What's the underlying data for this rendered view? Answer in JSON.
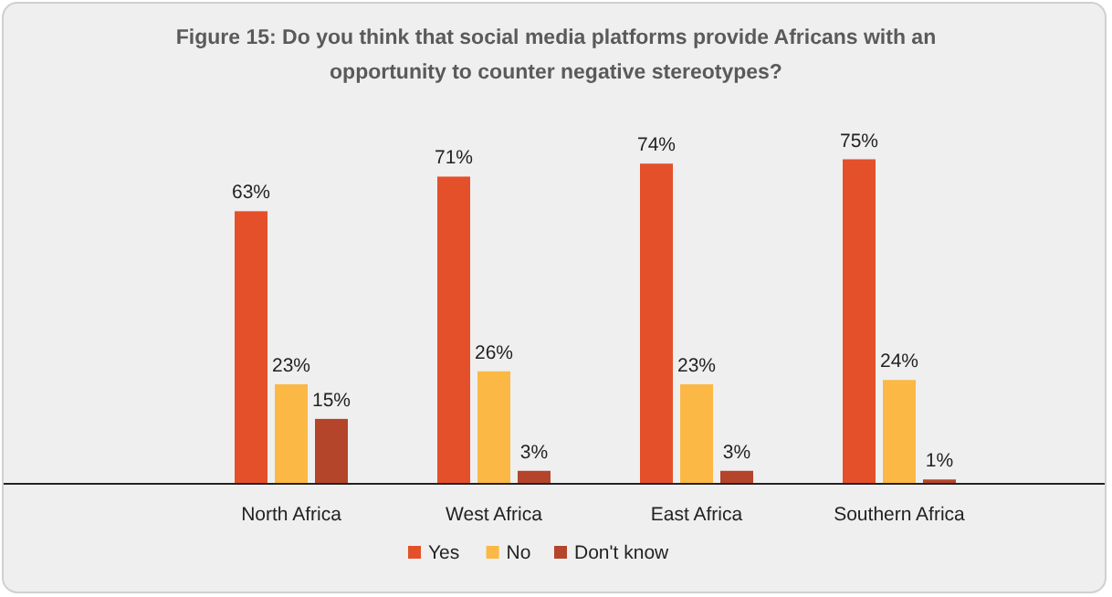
{
  "chart_data": {
    "type": "bar",
    "title": "Figure 15: Do you think that social media platforms provide Africans with an opportunity to counter negative stereotypes?",
    "categories": [
      "North Africa",
      "West Africa",
      "East Africa",
      "Southern Africa"
    ],
    "series": [
      {
        "name": "Yes",
        "color": "#e4502a",
        "values": [
          63,
          71,
          74,
          75
        ],
        "value_labels": [
          "63%",
          "71%",
          "74%",
          "75%"
        ]
      },
      {
        "name": "No",
        "color": "#fbb845",
        "values": [
          23,
          26,
          23,
          24
        ],
        "value_labels": [
          "23%",
          "26%",
          "23%",
          "24%"
        ]
      },
      {
        "name": "Don't know",
        "color": "#b4452a",
        "values": [
          15,
          3,
          3,
          1
        ],
        "value_labels": [
          "15%",
          "3%",
          "3%",
          "1%"
        ]
      }
    ],
    "legend": "bottom",
    "grid": false
  }
}
